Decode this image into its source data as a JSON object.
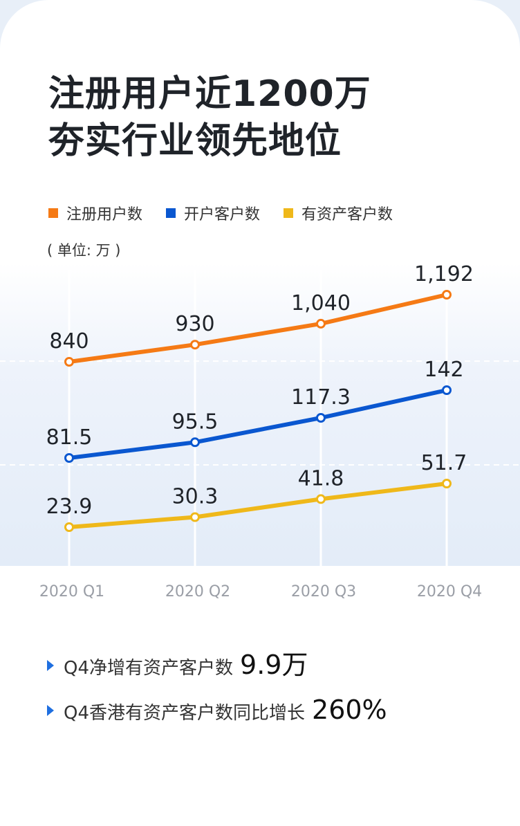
{
  "title": {
    "line1": "注册用户近1200万",
    "line2": "夯实行业领先地位"
  },
  "legend": [
    {
      "label": "注册用户数",
      "color": "#f57a15"
    },
    {
      "label": "开户客户数",
      "color": "#0a57d0"
    },
    {
      "label": "有资产客户数",
      "color": "#efb81a"
    }
  ],
  "unit_label": "( 单位: 万 )",
  "chart_data": {
    "type": "line",
    "categories": [
      "2020 Q1",
      "2020 Q2",
      "2020 Q3",
      "2020 Q4"
    ],
    "series": [
      {
        "name": "注册用户数",
        "values": [
          840,
          930,
          1040,
          1192
        ],
        "labels": [
          "840",
          "930",
          "1,040",
          "1,192"
        ],
        "color": "#f57a15"
      },
      {
        "name": "开户客户数",
        "values": [
          81.5,
          95.5,
          117.3,
          142
        ],
        "labels": [
          "81.5",
          "95.5",
          "117.3",
          "142"
        ],
        "color": "#0a57d0"
      },
      {
        "name": "有资产客户数",
        "values": [
          23.9,
          30.3,
          41.8,
          51.7
        ],
        "labels": [
          "23.9",
          "30.3",
          "41.8",
          "51.7"
        ],
        "color": "#efb81a"
      }
    ],
    "unit": "万",
    "grid": "dashed horizontal, solid white vertical"
  },
  "bullets": [
    {
      "text": "Q4净增有资产客户数",
      "value": "9.9万"
    },
    {
      "text": "Q4香港有资产客户数同比增长",
      "value": "260%"
    }
  ]
}
